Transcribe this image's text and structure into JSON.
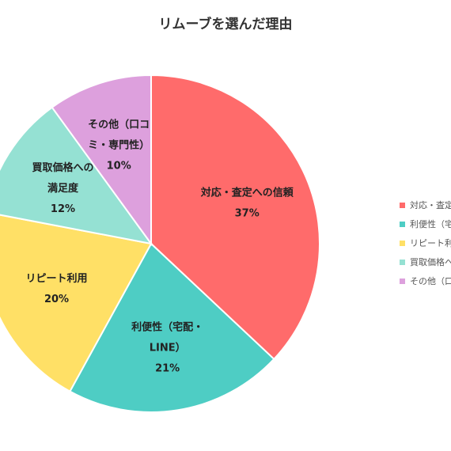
{
  "chart_data": {
    "type": "pie",
    "title": "リムーブを選んだ理由",
    "series": [
      {
        "name": "対応・査定への信頼",
        "label_lines": [
          "対応・査定への信頼"
        ],
        "value": 37,
        "percent_label": "37%",
        "color": "#FF6B6B"
      },
      {
        "name": "利便性（宅配・LINE）",
        "label_lines": [
          "利便性（宅配・",
          "LINE）"
        ],
        "value": 21,
        "percent_label": "21%",
        "color": "#4ECDC4"
      },
      {
        "name": "リピート利用",
        "label_lines": [
          "リピート利用"
        ],
        "value": 20,
        "percent_label": "20%",
        "color": "#FFE066"
      },
      {
        "name": "買取価格への満足度",
        "label_lines": [
          "買取価格への",
          "満足度"
        ],
        "value": 12,
        "percent_label": "12%",
        "color": "#95E1D3"
      },
      {
        "name": "その他（口コミ・専門性）",
        "label_lines": [
          "その他（口コ",
          "ミ・専門性）"
        ],
        "value": 10,
        "percent_label": "10%",
        "color": "#DDA0DD"
      }
    ],
    "legend": {
      "placement": "right",
      "entries": [
        "対応・査定への信頼",
        "利便性（宅配・LINE）",
        "リピート利用",
        "買取価格への満足度",
        "その他（口コミ・専門性）"
      ]
    }
  }
}
